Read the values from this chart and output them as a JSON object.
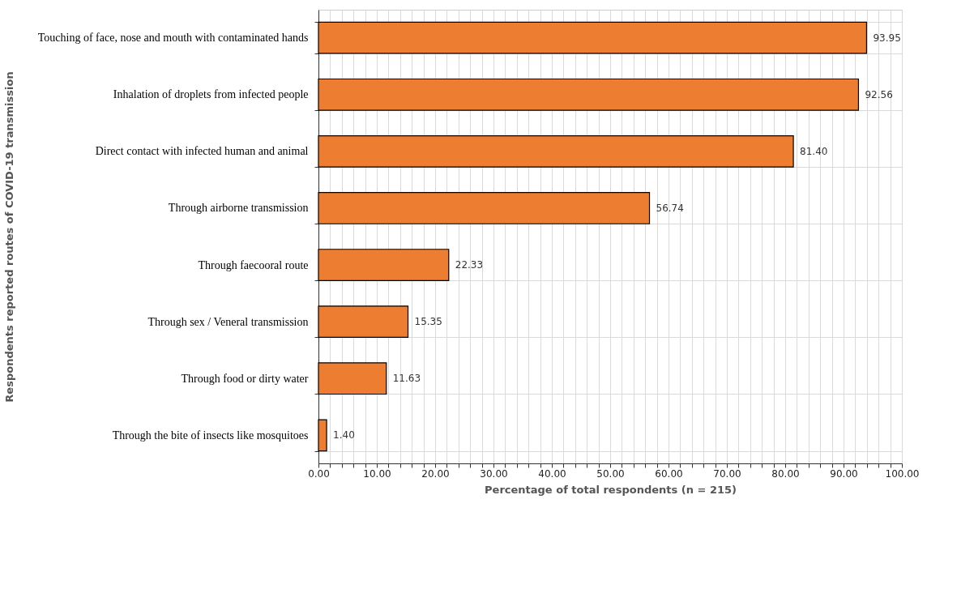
{
  "chart_data": {
    "type": "bar",
    "orientation": "horizontal",
    "xlabel": "Percentage of total respondents (n = 215)",
    "ylabel": "Respondents reported routes of COVID-19 transmission",
    "categories": [
      "Touching of face, nose and mouth with contaminated hands",
      "Inhalation of droplets from infected people",
      "Direct contact with infected human and animal",
      "Through airborne transmission",
      "Through faecooral route",
      "Through sex / Veneral transmission",
      "Through food or dirty water",
      "Through the bite of insects like mosquitoes"
    ],
    "values": [
      93.95,
      92.56,
      81.4,
      56.74,
      22.33,
      15.35,
      11.63,
      1.4
    ],
    "value_labels": [
      "93.95",
      "92.56",
      "81.40",
      "56.74",
      "22.33",
      "15.35",
      "11.63",
      "1.40"
    ],
    "color": "#ed7d31",
    "xlim": [
      0,
      100
    ],
    "xticks": [
      {
        "value": 0,
        "label": "0.00"
      },
      {
        "value": 2,
        "label": null
      },
      {
        "value": 4,
        "label": null
      },
      {
        "value": 6,
        "label": null
      },
      {
        "value": 8,
        "label": null
      },
      {
        "value": 10,
        "label": "10.00"
      },
      {
        "value": 12,
        "label": null
      },
      {
        "value": 14,
        "label": null
      },
      {
        "value": 16,
        "label": null
      },
      {
        "value": 18,
        "label": null
      },
      {
        "value": 20,
        "label": "20.00"
      },
      {
        "value": 22,
        "label": null
      },
      {
        "value": 24,
        "label": null
      },
      {
        "value": 26,
        "label": null
      },
      {
        "value": 28,
        "label": null
      },
      {
        "value": 30,
        "label": "30.00"
      },
      {
        "value": 32,
        "label": null
      },
      {
        "value": 34,
        "label": null
      },
      {
        "value": 36,
        "label": null
      },
      {
        "value": 38,
        "label": null
      },
      {
        "value": 40,
        "label": "40.00"
      },
      {
        "value": 42,
        "label": null
      },
      {
        "value": 44,
        "label": null
      },
      {
        "value": 46,
        "label": null
      },
      {
        "value": 48,
        "label": null
      },
      {
        "value": 50,
        "label": "50.00"
      },
      {
        "value": 52,
        "label": null
      },
      {
        "value": 54,
        "label": null
      },
      {
        "value": 56,
        "label": null
      },
      {
        "value": 58,
        "label": null
      },
      {
        "value": 60,
        "label": "60.00"
      },
      {
        "value": 62,
        "label": null
      },
      {
        "value": 64,
        "label": null
      },
      {
        "value": 66,
        "label": null
      },
      {
        "value": 68,
        "label": null
      },
      {
        "value": 70,
        "label": "70.00"
      },
      {
        "value": 72,
        "label": null
      },
      {
        "value": 74,
        "label": null
      },
      {
        "value": 76,
        "label": null
      },
      {
        "value": 78,
        "label": null
      },
      {
        "value": 80,
        "label": "80.00"
      },
      {
        "value": 82,
        "label": null
      },
      {
        "value": 84,
        "label": null
      },
      {
        "value": 86,
        "label": null
      },
      {
        "value": 88,
        "label": null
      },
      {
        "value": 90,
        "label": "90.00"
      },
      {
        "value": 92,
        "label": null
      },
      {
        "value": 94,
        "label": null
      },
      {
        "value": 96,
        "label": null
      },
      {
        "value": 98,
        "label": null
      },
      {
        "value": 100,
        "label": "100.00"
      }
    ],
    "grid": true
  }
}
